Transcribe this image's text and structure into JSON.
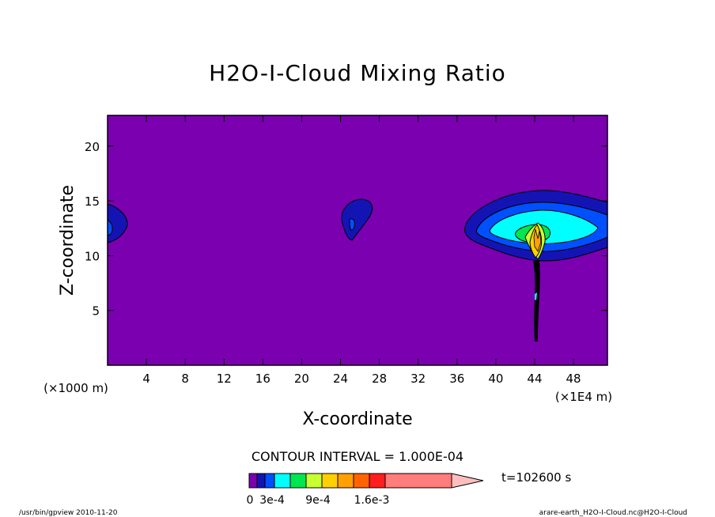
{
  "chart_data": {
    "type": "heatmap",
    "title": "H2O-I-Cloud Mixing Ratio",
    "xlabel": "X-coordinate",
    "ylabel": "Z-coordinate",
    "x_unit_label": "(×1E4 m)",
    "y_unit_label": "(×1000 m)",
    "x_ticks": [
      4,
      8,
      12,
      16,
      20,
      24,
      28,
      32,
      36,
      40,
      44,
      48
    ],
    "y_ticks": [
      5,
      10,
      15,
      20
    ],
    "xlim": [
      0,
      51.5
    ],
    "ylim": [
      0,
      22.8
    ],
    "contour_interval_text": "CONTOUR INTERVAL = 1.000E-04",
    "time_label": "t=102600 s",
    "colorbar_labels": [
      "0",
      "3e-4",
      "9e-4",
      "1.6e-3"
    ],
    "colorbar_colors": [
      "#7a00b0",
      "#1414b4",
      "#0050ff",
      "#00ffff",
      "#00e650",
      "#c8ff32",
      "#ffd000",
      "#ffa000",
      "#ff6400",
      "#ff1e1e",
      "#ff7d7d",
      "#ffbebe"
    ],
    "features": [
      {
        "region": "left edge cloud",
        "x_center": 0.5,
        "z_center": 12.7,
        "level_max": "2e-4"
      },
      {
        "region": "small cloud",
        "x_center": 25.8,
        "z_center": 13.3,
        "level_max": "2e-4"
      },
      {
        "region": "main cloud",
        "x_center": 45.5,
        "z_center": 12.8,
        "level_max": "1.6e-3"
      }
    ]
  },
  "footer": {
    "left": "/usr/bin/gpview  2010-11-20",
    "right": "arare-earth_H2O-I-Cloud.nc@H2O-I-Cloud"
  }
}
